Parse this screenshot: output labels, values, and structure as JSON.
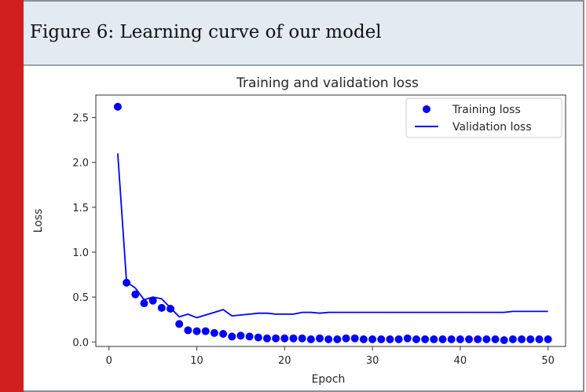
{
  "caption": "Figure 6: Learning curve of our model",
  "colors": {
    "accent_bar": "#d11f1f",
    "caption_background": "#e3eaf0",
    "series": "#0000ff"
  },
  "chart_data": {
    "type": "line",
    "title": "Training and validation loss",
    "xlabel": "Epoch",
    "ylabel": "Loss",
    "xlim": [
      -1.5,
      52
    ],
    "ylim": [
      -0.05,
      2.75
    ],
    "xticks": [
      0,
      10,
      20,
      30,
      40,
      50
    ],
    "yticks": [
      0.0,
      0.5,
      1.0,
      1.5,
      2.0,
      2.5
    ],
    "xtick_labels": [
      "0",
      "10",
      "20",
      "30",
      "40",
      "50"
    ],
    "ytick_labels": [
      "0.0",
      "0.5",
      "1.0",
      "1.5",
      "2.0",
      "2.5"
    ],
    "grid": false,
    "legend_position": "top-right",
    "x": [
      1,
      2,
      3,
      4,
      5,
      6,
      7,
      8,
      9,
      10,
      11,
      12,
      13,
      14,
      15,
      16,
      17,
      18,
      19,
      20,
      21,
      22,
      23,
      24,
      25,
      26,
      27,
      28,
      29,
      30,
      31,
      32,
      33,
      34,
      35,
      36,
      37,
      38,
      39,
      40,
      41,
      42,
      43,
      44,
      45,
      46,
      47,
      48,
      49,
      50
    ],
    "series": [
      {
        "name": "Training loss",
        "style": "points",
        "values": [
          2.62,
          0.66,
          0.53,
          0.43,
          0.46,
          0.38,
          0.37,
          0.2,
          0.13,
          0.12,
          0.12,
          0.1,
          0.09,
          0.06,
          0.07,
          0.06,
          0.05,
          0.04,
          0.04,
          0.04,
          0.04,
          0.04,
          0.03,
          0.04,
          0.03,
          0.03,
          0.04,
          0.04,
          0.03,
          0.03,
          0.03,
          0.03,
          0.03,
          0.04,
          0.03,
          0.03,
          0.03,
          0.03,
          0.03,
          0.03,
          0.03,
          0.03,
          0.03,
          0.03,
          0.02,
          0.03,
          0.03,
          0.03,
          0.03,
          0.03
        ]
      },
      {
        "name": "Validation loss",
        "style": "line",
        "values": [
          2.1,
          0.67,
          0.6,
          0.47,
          0.5,
          0.48,
          0.38,
          0.28,
          0.31,
          0.27,
          0.3,
          0.33,
          0.36,
          0.29,
          0.3,
          0.31,
          0.32,
          0.32,
          0.31,
          0.31,
          0.31,
          0.33,
          0.33,
          0.32,
          0.33,
          0.33,
          0.33,
          0.33,
          0.33,
          0.33,
          0.33,
          0.33,
          0.33,
          0.33,
          0.33,
          0.33,
          0.33,
          0.33,
          0.33,
          0.33,
          0.33,
          0.33,
          0.33,
          0.33,
          0.33,
          0.34,
          0.34,
          0.34,
          0.34,
          0.34
        ]
      }
    ]
  }
}
